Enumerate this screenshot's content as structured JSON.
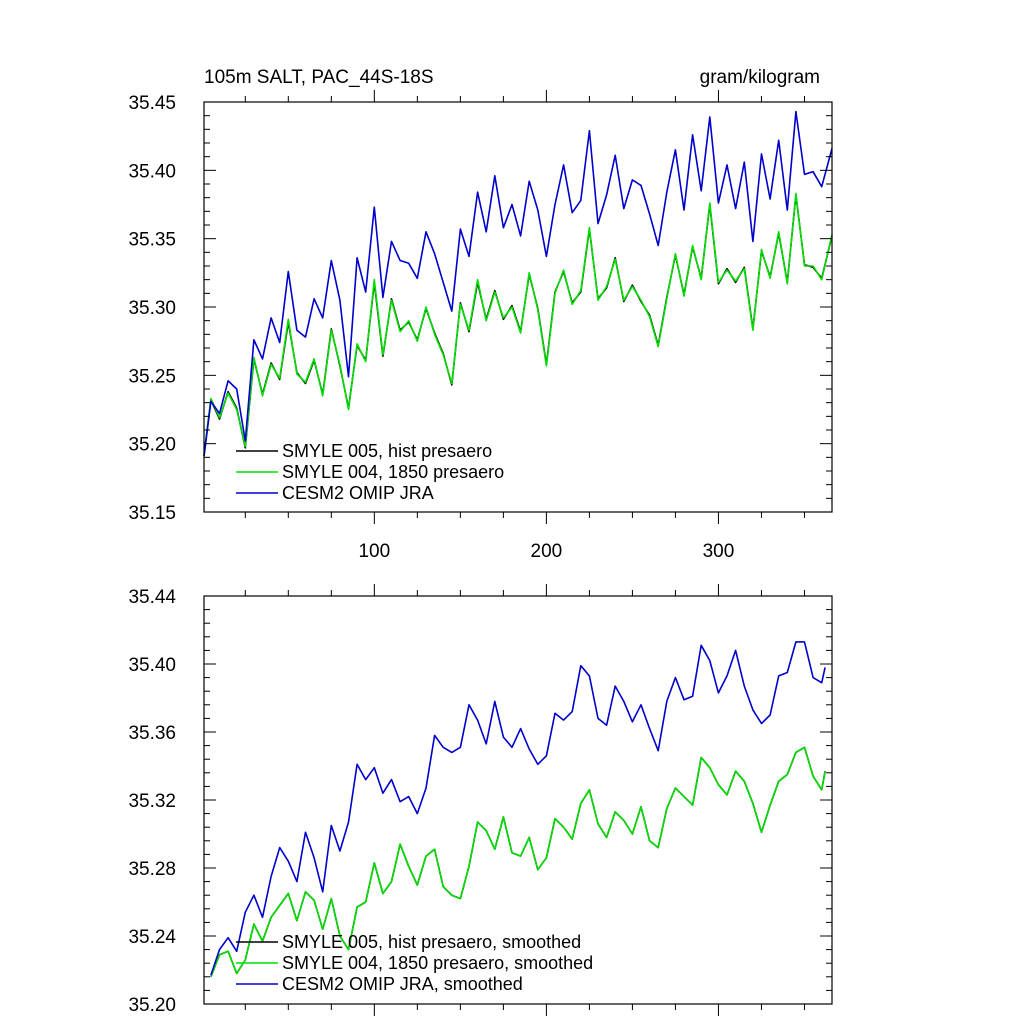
{
  "chart_data": [
    {
      "type": "line",
      "title_left": "105m SALT, PAC_44S-18S",
      "title_right": "gram/kilogram",
      "xlim": [
        1,
        366
      ],
      "ylim": [
        35.15,
        35.45
      ],
      "y_ticks": [
        "35.15",
        "35.20",
        "35.25",
        "35.30",
        "35.35",
        "35.40",
        "35.45"
      ],
      "y_tick_values": [
        35.15,
        35.2,
        35.25,
        35.3,
        35.35,
        35.4,
        35.45
      ],
      "x_ticks": [
        "100",
        "200",
        "300"
      ],
      "x_tick_values": [
        100,
        200,
        300
      ],
      "legend_position": "lower-left",
      "series": [
        {
          "name": "SMYLE 005, hist presaero",
          "color": "#000000",
          "x": [
            1,
            5,
            10,
            15,
            20,
            25,
            30,
            35,
            40,
            45,
            50,
            55,
            60,
            65,
            70,
            75,
            80,
            85,
            90,
            95,
            100,
            105,
            110,
            115,
            120,
            125,
            130,
            135,
            140,
            145,
            150,
            155,
            160,
            165,
            170,
            175,
            180,
            185,
            190,
            195,
            200,
            205,
            210,
            215,
            220,
            225,
            230,
            235,
            240,
            245,
            250,
            255,
            260,
            265,
            270,
            275,
            280,
            285,
            290,
            295,
            300,
            305,
            310,
            315,
            320,
            325,
            330,
            335,
            340,
            345,
            350,
            355,
            360,
            366
          ],
          "values": [
            35.191,
            35.232,
            35.218,
            35.238,
            35.226,
            35.197,
            35.262,
            35.236,
            35.259,
            35.247,
            35.289,
            35.252,
            35.244,
            35.261,
            35.236,
            35.284,
            35.257,
            35.226,
            35.272,
            35.261,
            35.318,
            35.264,
            35.306,
            35.283,
            35.289,
            35.276,
            35.299,
            35.281,
            35.266,
            35.243,
            35.303,
            35.282,
            35.318,
            35.291,
            35.312,
            35.291,
            35.301,
            35.282,
            35.324,
            35.299,
            35.258,
            35.311,
            35.326,
            35.303,
            35.311,
            35.357,
            35.306,
            35.314,
            35.336,
            35.304,
            35.316,
            35.304,
            35.294,
            35.272,
            35.307,
            35.338,
            35.309,
            35.344,
            35.321,
            35.375,
            35.317,
            35.328,
            35.318,
            35.329,
            35.284,
            35.341,
            35.322,
            35.354,
            35.318,
            35.382,
            35.331,
            35.329,
            35.321,
            35.352
          ]
        },
        {
          "name": "SMYLE 004, 1850 presaero",
          "color": "#00dd00",
          "x": [
            1,
            5,
            10,
            15,
            20,
            25,
            30,
            35,
            40,
            45,
            50,
            55,
            60,
            65,
            70,
            75,
            80,
            85,
            90,
            95,
            100,
            105,
            110,
            115,
            120,
            125,
            130,
            135,
            140,
            145,
            150,
            155,
            160,
            165,
            170,
            175,
            180,
            185,
            190,
            195,
            200,
            205,
            210,
            215,
            220,
            225,
            230,
            235,
            240,
            245,
            250,
            255,
            260,
            265,
            270,
            275,
            280,
            285,
            290,
            295,
            300,
            305,
            310,
            315,
            320,
            325,
            330,
            335,
            340,
            345,
            350,
            355,
            360,
            366
          ],
          "values": [
            35.192,
            35.233,
            35.219,
            35.237,
            35.225,
            35.198,
            35.263,
            35.235,
            35.258,
            35.248,
            35.291,
            35.251,
            35.245,
            35.262,
            35.235,
            35.283,
            35.258,
            35.225,
            35.273,
            35.26,
            35.32,
            35.265,
            35.305,
            35.282,
            35.29,
            35.275,
            35.3,
            35.28,
            35.265,
            35.244,
            35.302,
            35.283,
            35.32,
            35.29,
            35.311,
            35.292,
            35.3,
            35.281,
            35.325,
            35.298,
            35.257,
            35.31,
            35.327,
            35.302,
            35.312,
            35.358,
            35.305,
            35.315,
            35.335,
            35.305,
            35.315,
            35.305,
            35.293,
            35.271,
            35.306,
            35.339,
            35.308,
            35.345,
            35.32,
            35.376,
            35.318,
            35.327,
            35.319,
            35.328,
            35.283,
            35.342,
            35.321,
            35.355,
            35.317,
            35.383,
            35.33,
            35.33,
            35.32,
            35.353
          ]
        },
        {
          "name": "CESM2 OMIP JRA",
          "color": "#0000cc",
          "x": [
            1,
            5,
            10,
            15,
            20,
            25,
            30,
            35,
            40,
            45,
            50,
            55,
            60,
            65,
            70,
            75,
            80,
            85,
            90,
            95,
            100,
            105,
            110,
            115,
            120,
            125,
            130,
            135,
            140,
            145,
            150,
            155,
            160,
            165,
            170,
            175,
            180,
            185,
            190,
            195,
            200,
            205,
            210,
            215,
            220,
            225,
            230,
            235,
            240,
            245,
            250,
            255,
            260,
            265,
            270,
            275,
            280,
            285,
            290,
            295,
            300,
            305,
            310,
            315,
            320,
            325,
            330,
            335,
            340,
            345,
            350,
            355,
            360,
            366
          ],
          "values": [
            35.191,
            35.231,
            35.222,
            35.246,
            35.24,
            35.202,
            35.276,
            35.262,
            35.292,
            35.274,
            35.326,
            35.283,
            35.278,
            35.306,
            35.292,
            35.334,
            35.305,
            35.249,
            35.336,
            35.311,
            35.373,
            35.307,
            35.348,
            35.334,
            35.332,
            35.321,
            35.355,
            35.339,
            35.318,
            35.297,
            35.357,
            35.337,
            35.384,
            35.355,
            35.396,
            35.358,
            35.375,
            35.352,
            35.392,
            35.371,
            35.337,
            35.375,
            35.404,
            35.369,
            35.378,
            35.429,
            35.361,
            35.382,
            35.411,
            35.372,
            35.393,
            35.389,
            35.368,
            35.345,
            35.384,
            35.415,
            35.371,
            35.426,
            35.385,
            35.439,
            35.376,
            35.404,
            35.372,
            35.406,
            35.348,
            35.412,
            35.379,
            35.422,
            35.371,
            35.443,
            35.397,
            35.399,
            35.388,
            35.416
          ]
        }
      ]
    },
    {
      "type": "line",
      "xlim": [
        1,
        366
      ],
      "ylim": [
        35.2,
        35.44
      ],
      "y_ticks": [
        "35.20",
        "35.24",
        "35.28",
        "35.32",
        "35.36",
        "35.40",
        "35.44"
      ],
      "y_tick_values": [
        35.2,
        35.24,
        35.28,
        35.32,
        35.36,
        35.4,
        35.44
      ],
      "legend_position": "lower-left",
      "series": [
        {
          "name": "SMYLE 005, hist presaero, smoothed",
          "color": "#000000",
          "x": [
            5,
            10,
            15,
            20,
            25,
            30,
            35,
            40,
            45,
            50,
            55,
            60,
            65,
            70,
            75,
            80,
            85,
            90,
            95,
            100,
            105,
            110,
            115,
            120,
            125,
            130,
            135,
            140,
            145,
            150,
            155,
            160,
            165,
            170,
            175,
            180,
            185,
            190,
            195,
            200,
            205,
            210,
            215,
            220,
            225,
            230,
            235,
            240,
            245,
            250,
            255,
            260,
            265,
            270,
            275,
            280,
            285,
            290,
            295,
            300,
            305,
            310,
            315,
            320,
            325,
            330,
            335,
            340,
            345,
            350,
            355,
            360,
            362
          ],
          "values": [
            35.216,
            35.229,
            35.231,
            35.218,
            35.226,
            35.247,
            35.237,
            35.251,
            35.258,
            35.265,
            35.249,
            35.266,
            35.261,
            35.244,
            35.262,
            35.24,
            35.232,
            35.257,
            35.26,
            35.283,
            35.265,
            35.272,
            35.294,
            35.281,
            35.27,
            35.287,
            35.291,
            35.269,
            35.264,
            35.262,
            35.281,
            35.307,
            35.302,
            35.291,
            35.31,
            35.289,
            35.287,
            35.298,
            35.279,
            35.286,
            35.309,
            35.304,
            35.297,
            35.318,
            35.326,
            35.306,
            35.298,
            35.313,
            35.308,
            35.3,
            35.316,
            35.296,
            35.292,
            35.315,
            35.327,
            35.322,
            35.317,
            35.345,
            35.339,
            35.329,
            35.323,
            35.337,
            35.331,
            35.318,
            35.301,
            35.317,
            35.331,
            35.335,
            35.348,
            35.351,
            35.334,
            35.326,
            35.337
          ]
        },
        {
          "name": "SMYLE 004, 1850 presaero, smoothed",
          "color": "#00dd00",
          "x": [
            5,
            10,
            15,
            20,
            25,
            30,
            35,
            40,
            45,
            50,
            55,
            60,
            65,
            70,
            75,
            80,
            85,
            90,
            95,
            100,
            105,
            110,
            115,
            120,
            125,
            130,
            135,
            140,
            145,
            150,
            155,
            160,
            165,
            170,
            175,
            180,
            185,
            190,
            195,
            200,
            205,
            210,
            215,
            220,
            225,
            230,
            235,
            240,
            245,
            250,
            255,
            260,
            265,
            270,
            275,
            280,
            285,
            290,
            295,
            300,
            305,
            310,
            315,
            320,
            325,
            330,
            335,
            340,
            345,
            350,
            355,
            360,
            362
          ],
          "values": [
            35.216,
            35.229,
            35.231,
            35.218,
            35.226,
            35.247,
            35.237,
            35.251,
            35.258,
            35.265,
            35.249,
            35.266,
            35.261,
            35.244,
            35.262,
            35.24,
            35.232,
            35.257,
            35.26,
            35.283,
            35.265,
            35.272,
            35.294,
            35.281,
            35.27,
            35.287,
            35.291,
            35.269,
            35.264,
            35.262,
            35.281,
            35.307,
            35.302,
            35.291,
            35.31,
            35.289,
            35.287,
            35.298,
            35.279,
            35.286,
            35.309,
            35.304,
            35.297,
            35.318,
            35.326,
            35.306,
            35.298,
            35.313,
            35.308,
            35.3,
            35.316,
            35.296,
            35.292,
            35.315,
            35.327,
            35.322,
            35.317,
            35.345,
            35.339,
            35.329,
            35.323,
            35.337,
            35.331,
            35.318,
            35.301,
            35.317,
            35.331,
            35.335,
            35.348,
            35.351,
            35.334,
            35.326,
            35.337
          ]
        },
        {
          "name": "CESM2 OMIP JRA, smoothed",
          "color": "#0000cc",
          "x": [
            5,
            10,
            15,
            20,
            25,
            30,
            35,
            40,
            45,
            50,
            55,
            60,
            65,
            70,
            75,
            80,
            85,
            90,
            95,
            100,
            105,
            110,
            115,
            120,
            125,
            130,
            135,
            140,
            145,
            150,
            155,
            160,
            165,
            170,
            175,
            180,
            185,
            190,
            195,
            200,
            205,
            210,
            215,
            220,
            225,
            230,
            235,
            240,
            245,
            250,
            255,
            260,
            265,
            270,
            275,
            280,
            285,
            290,
            295,
            300,
            305,
            310,
            315,
            320,
            325,
            330,
            335,
            340,
            345,
            350,
            355,
            360,
            362
          ],
          "values": [
            35.217,
            35.232,
            35.239,
            35.231,
            35.254,
            35.264,
            35.251,
            35.275,
            35.292,
            35.284,
            35.272,
            35.301,
            35.286,
            35.266,
            35.305,
            35.29,
            35.307,
            35.341,
            35.332,
            35.339,
            35.324,
            35.332,
            35.319,
            35.322,
            35.312,
            35.327,
            35.358,
            35.351,
            35.348,
            35.351,
            35.376,
            35.367,
            35.353,
            35.378,
            35.357,
            35.351,
            35.362,
            35.35,
            35.341,
            35.346,
            35.371,
            35.367,
            35.372,
            35.399,
            35.393,
            35.368,
            35.364,
            35.387,
            35.378,
            35.366,
            35.376,
            35.362,
            35.349,
            35.378,
            35.392,
            35.379,
            35.381,
            35.411,
            35.402,
            35.383,
            35.393,
            35.408,
            35.387,
            35.373,
            35.365,
            35.37,
            35.393,
            35.395,
            35.413,
            35.413,
            35.392,
            35.389,
            35.398
          ]
        }
      ]
    }
  ]
}
